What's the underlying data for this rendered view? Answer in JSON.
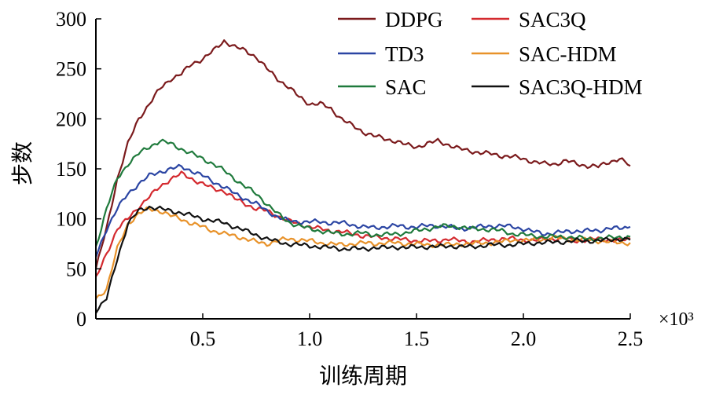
{
  "chart_data": {
    "type": "line",
    "title": "",
    "xlabel": "训练周期",
    "ylabel": "步数",
    "x_multiplier_label": "×10³",
    "xlim": [
      0,
      2.5
    ],
    "ylim": [
      0,
      300
    ],
    "x_ticks": [
      0.5,
      1.0,
      1.5,
      2.0,
      2.5
    ],
    "x_tick_labels": [
      "0.5",
      "1.0",
      "1.5",
      "2.0",
      "2.5"
    ],
    "y_ticks": [
      0,
      50,
      100,
      150,
      200,
      250,
      300
    ],
    "y_tick_labels": [
      "0",
      "50",
      "100",
      "150",
      "200",
      "250",
      "300"
    ],
    "legend_position": "top-right",
    "grid": false,
    "x": [
      0,
      0.05,
      0.1,
      0.15,
      0.2,
      0.25,
      0.3,
      0.35,
      0.4,
      0.45,
      0.5,
      0.55,
      0.6,
      0.65,
      0.7,
      0.75,
      0.8,
      0.85,
      0.9,
      0.95,
      1.0,
      1.05,
      1.1,
      1.15,
      1.2,
      1.25,
      1.3,
      1.35,
      1.4,
      1.45,
      1.5,
      1.55,
      1.6,
      1.65,
      1.7,
      1.75,
      1.8,
      1.85,
      1.9,
      1.95,
      2.0,
      2.05,
      2.1,
      2.15,
      2.2,
      2.25,
      2.3,
      2.35,
      2.4,
      2.45,
      2.5
    ],
    "series": [
      {
        "name": "DDPG",
        "color": "#7b1a1c",
        "values": [
          50,
          90,
          140,
          175,
          200,
          215,
          230,
          240,
          245,
          255,
          260,
          268,
          278,
          272,
          268,
          262,
          250,
          240,
          232,
          222,
          215,
          215,
          210,
          200,
          193,
          187,
          183,
          180,
          178,
          174,
          172,
          175,
          178,
          174,
          170,
          168,
          166,
          165,
          163,
          162,
          160,
          157,
          155,
          155,
          158,
          155,
          153,
          152,
          157,
          160,
          153
        ]
      },
      {
        "name": "SAC3Q",
        "color": "#d42a2f",
        "values": [
          40,
          65,
          90,
          100,
          112,
          122,
          132,
          140,
          145,
          140,
          135,
          130,
          128,
          120,
          115,
          110,
          108,
          103,
          98,
          95,
          92,
          90,
          88,
          87,
          85,
          83,
          82,
          81,
          80,
          79,
          78,
          78,
          78,
          80,
          78,
          77,
          78,
          79,
          80,
          80,
          79,
          78,
          80,
          80,
          80,
          78,
          79,
          80,
          79,
          78,
          80
        ]
      },
      {
        "name": "TD3",
        "color": "#2b45a3",
        "values": [
          62,
          90,
          110,
          125,
          135,
          143,
          147,
          150,
          152,
          148,
          143,
          137,
          132,
          125,
          120,
          115,
          108,
          102,
          98,
          97,
          97,
          97,
          96,
          96,
          94,
          92,
          91,
          92,
          93,
          92,
          92,
          93,
          93,
          92,
          90,
          91,
          92,
          93,
          93,
          92,
          90,
          87,
          85,
          86,
          87,
          88,
          88,
          88,
          91,
          90,
          92
        ]
      },
      {
        "name": "SAC-HDM",
        "color": "#e8922a",
        "values": [
          20,
          30,
          70,
          95,
          105,
          110,
          108,
          103,
          100,
          95,
          92,
          88,
          85,
          83,
          80,
          77,
          75,
          78,
          80,
          79,
          78,
          76,
          75,
          74,
          75,
          76,
          75,
          76,
          76,
          75,
          75,
          74,
          74,
          74,
          75,
          75,
          76,
          76,
          77,
          79,
          78,
          79,
          80,
          81,
          80,
          79,
          79,
          78,
          77,
          76,
          76
        ]
      },
      {
        "name": "SAC",
        "color": "#1f7a3c",
        "values": [
          72,
          110,
          140,
          155,
          165,
          172,
          178,
          175,
          170,
          165,
          160,
          155,
          148,
          140,
          132,
          125,
          115,
          105,
          97,
          93,
          90,
          88,
          86,
          85,
          85,
          86,
          84,
          84,
          85,
          86,
          88,
          90,
          92,
          93,
          92,
          90,
          90,
          89,
          88,
          85,
          84,
          83,
          82,
          82,
          82,
          81,
          80,
          80,
          81,
          82,
          82
        ]
      },
      {
        "name": "SAC3Q-HDM",
        "color": "#111111",
        "values": [
          8,
          20,
          60,
          95,
          108,
          112,
          110,
          108,
          106,
          103,
          100,
          98,
          96,
          92,
          88,
          84,
          80,
          77,
          75,
          74,
          73,
          72,
          71,
          70,
          70,
          70,
          71,
          71,
          72,
          71,
          72,
          72,
          72,
          73,
          72,
          72,
          73,
          74,
          74,
          74,
          75,
          76,
          76,
          77,
          77,
          78,
          78,
          78,
          79,
          80,
          79
        ]
      }
    ]
  }
}
